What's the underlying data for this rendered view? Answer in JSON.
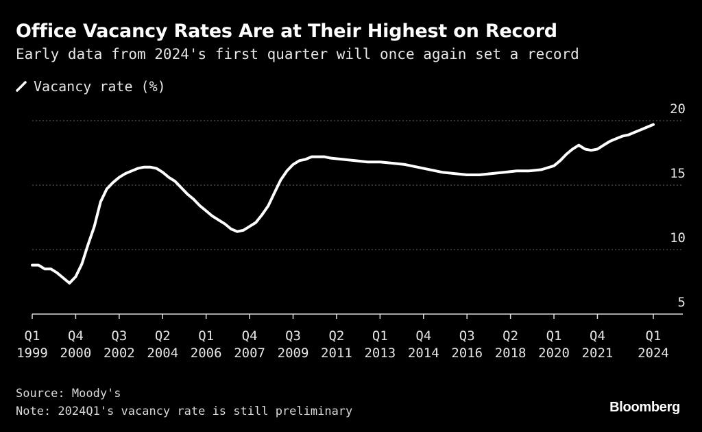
{
  "title": "Office Vacancy Rates Are at Their Highest on Record",
  "subtitle": "Early data from 2024's first quarter will once again set a record",
  "legend_label": "Vacancy rate (%)",
  "source": "Source: Moody's",
  "note": "Note: 2024Q1's vacancy rate is still preliminary",
  "brand": "Bloomberg",
  "colors": {
    "background": "#000000",
    "line": "#ffffff",
    "grid": "#666666",
    "text": "#e6e6e6"
  },
  "chart_data": {
    "type": "line",
    "title": "Office Vacancy Rates Are at Their Highest on Record",
    "ylabel": "Vacancy rate (%)",
    "ylim": [
      5,
      20
    ],
    "yticks": [
      5,
      10,
      15,
      20
    ],
    "grid": true,
    "x_range": [
      1999.0,
      2024.0
    ],
    "xticks": [
      {
        "x": 1999.0,
        "q": "Q1",
        "year": "1999"
      },
      {
        "x": 2000.75,
        "q": "Q4",
        "year": "2000"
      },
      {
        "x": 2002.5,
        "q": "Q3",
        "year": "2002"
      },
      {
        "x": 2004.25,
        "q": "Q2",
        "year": "2004"
      },
      {
        "x": 2006.0,
        "q": "Q1",
        "year": "2006"
      },
      {
        "x": 2007.75,
        "q": "Q4",
        "year": "2007"
      },
      {
        "x": 2009.5,
        "q": "Q3",
        "year": "2009"
      },
      {
        "x": 2011.25,
        "q": "Q2",
        "year": "2011"
      },
      {
        "x": 2013.0,
        "q": "Q1",
        "year": "2013"
      },
      {
        "x": 2014.75,
        "q": "Q4",
        "year": "2014"
      },
      {
        "x": 2016.5,
        "q": "Q3",
        "year": "2016"
      },
      {
        "x": 2018.25,
        "q": "Q2",
        "year": "2018"
      },
      {
        "x": 2020.0,
        "q": "Q1",
        "year": "2020"
      },
      {
        "x": 2021.75,
        "q": "Q4",
        "year": "2021"
      },
      {
        "x": 2024.0,
        "q": "Q1",
        "year": "2024"
      }
    ],
    "series": [
      {
        "name": "Vacancy rate (%)",
        "x": [
          1999.0,
          1999.25,
          1999.5,
          1999.75,
          2000.0,
          2000.25,
          2000.5,
          2000.75,
          2001.0,
          2001.25,
          2001.5,
          2001.75,
          2002.0,
          2002.25,
          2002.5,
          2002.75,
          2003.0,
          2003.25,
          2003.5,
          2003.75,
          2004.0,
          2004.25,
          2004.5,
          2004.75,
          2005.0,
          2005.25,
          2005.5,
          2005.75,
          2006.0,
          2006.25,
          2006.5,
          2006.75,
          2007.0,
          2007.25,
          2007.5,
          2007.75,
          2008.0,
          2008.25,
          2008.5,
          2008.75,
          2009.0,
          2009.25,
          2009.5,
          2009.75,
          2010.0,
          2010.25,
          2010.5,
          2010.75,
          2011.0,
          2011.5,
          2012.0,
          2012.5,
          2013.0,
          2013.5,
          2014.0,
          2014.5,
          2015.0,
          2015.5,
          2016.0,
          2016.5,
          2017.0,
          2017.5,
          2018.0,
          2018.5,
          2019.0,
          2019.5,
          2020.0,
          2020.25,
          2020.5,
          2020.75,
          2021.0,
          2021.25,
          2021.5,
          2021.75,
          2022.0,
          2022.25,
          2022.5,
          2022.75,
          2023.0,
          2023.25,
          2023.5,
          2023.75,
          2024.0
        ],
        "values": [
          8.8,
          8.8,
          8.5,
          8.5,
          8.2,
          7.8,
          7.4,
          7.9,
          8.9,
          10.4,
          11.8,
          13.7,
          14.7,
          15.2,
          15.6,
          15.9,
          16.1,
          16.3,
          16.4,
          16.4,
          16.3,
          16.0,
          15.6,
          15.3,
          14.8,
          14.3,
          13.9,
          13.4,
          13.0,
          12.6,
          12.3,
          12.0,
          11.6,
          11.4,
          11.5,
          11.8,
          12.1,
          12.7,
          13.4,
          14.4,
          15.4,
          16.1,
          16.6,
          16.9,
          17.0,
          17.2,
          17.2,
          17.2,
          17.1,
          17.0,
          16.9,
          16.8,
          16.8,
          16.7,
          16.6,
          16.4,
          16.2,
          16.0,
          15.9,
          15.8,
          15.8,
          15.9,
          16.0,
          16.1,
          16.1,
          16.2,
          16.5,
          16.9,
          17.4,
          17.8,
          18.1,
          17.8,
          17.7,
          17.8,
          18.1,
          18.4,
          18.6,
          18.8,
          18.9,
          19.1,
          19.3,
          19.5,
          19.7
        ]
      }
    ]
  }
}
